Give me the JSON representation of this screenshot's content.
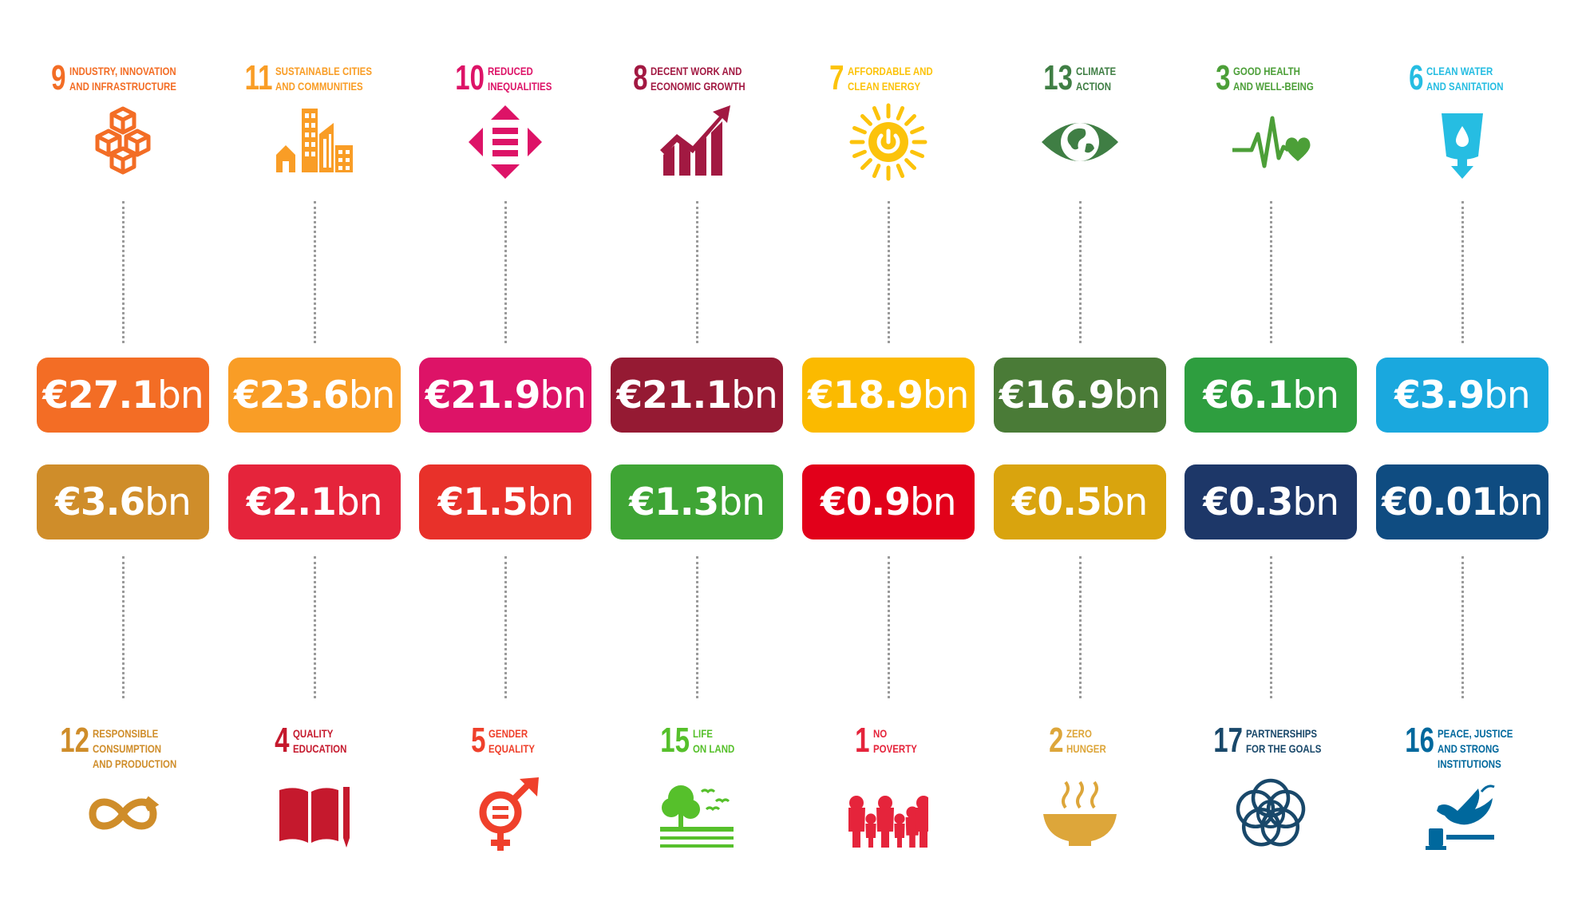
{
  "columns": [
    {
      "top_goal": {
        "number": "9",
        "title_line1": "INDUSTRY, INNOVATION",
        "title_line2": "AND INFRASTRUCTURE",
        "title_line3": "",
        "color": "#F36D25",
        "icon": "cubes-icon"
      },
      "top_amount": {
        "value": "€27.1",
        "unit": "bn",
        "color": "#F36D25"
      },
      "bottom_amount": {
        "value": "€3.6",
        "unit": "bn",
        "color": "#CF8D2A"
      },
      "bottom_goal": {
        "number": "12",
        "title_line1": "RESPONSIBLE",
        "title_line2": "CONSUMPTION",
        "title_line3": "AND PRODUCTION",
        "color": "#CF8D2A",
        "icon": "infinity-loop-icon"
      }
    },
    {
      "top_goal": {
        "number": "11",
        "title_line1": "SUSTAINABLE CITIES",
        "title_line2": "AND COMMUNITIES",
        "title_line3": "",
        "color": "#F99D26",
        "icon": "city-buildings-icon"
      },
      "top_amount": {
        "value": "€23.6",
        "unit": "bn",
        "color": "#F99D26"
      },
      "bottom_amount": {
        "value": "€2.1",
        "unit": "bn",
        "color": "#E5243B"
      },
      "bottom_goal": {
        "number": "4",
        "title_line1": "QUALITY",
        "title_line2": "EDUCATION",
        "title_line3": "",
        "color": "#C5192D",
        "icon": "book-pencil-icon"
      }
    },
    {
      "top_goal": {
        "number": "10",
        "title_line1": "REDUCED",
        "title_line2": "INEQUALITIES",
        "title_line3": "",
        "color": "#DD1367",
        "icon": "equality-arrows-icon"
      },
      "top_amount": {
        "value": "€21.9",
        "unit": "bn",
        "color": "#DD1367"
      },
      "bottom_amount": {
        "value": "€1.5",
        "unit": "bn",
        "color": "#E8312A"
      },
      "bottom_goal": {
        "number": "5",
        "title_line1": "GENDER",
        "title_line2": "EQUALITY",
        "title_line3": "",
        "color": "#EF402B",
        "icon": "gender-symbol-icon"
      }
    },
    {
      "top_goal": {
        "number": "8",
        "title_line1": "DECENT WORK AND",
        "title_line2": "ECONOMIC GROWTH",
        "title_line3": "",
        "color": "#A21942",
        "icon": "growth-chart-icon"
      },
      "top_amount": {
        "value": "€21.1",
        "unit": "bn",
        "color": "#951A33"
      },
      "bottom_amount": {
        "value": "€1.3",
        "unit": "bn",
        "color": "#3FA535"
      },
      "bottom_goal": {
        "number": "15",
        "title_line1": "LIFE",
        "title_line2": "ON LAND",
        "title_line3": "",
        "color": "#56C02B",
        "icon": "tree-birds-icon"
      }
    },
    {
      "top_goal": {
        "number": "7",
        "title_line1": "AFFORDABLE AND",
        "title_line2": "CLEAN ENERGY",
        "title_line3": "",
        "color": "#FCC30B",
        "icon": "sun-power-icon"
      },
      "top_amount": {
        "value": "€18.9",
        "unit": "bn",
        "color": "#FBBA00"
      },
      "bottom_amount": {
        "value": "€0.9",
        "unit": "bn",
        "color": "#E2001A"
      },
      "bottom_goal": {
        "number": "1",
        "title_line1": "NO",
        "title_line2": "POVERTY",
        "title_line3": "",
        "color": "#E5243B",
        "icon": "family-icon"
      }
    },
    {
      "top_goal": {
        "number": "13",
        "title_line1": "CLIMATE",
        "title_line2": "ACTION",
        "title_line3": "",
        "color": "#3F7E44",
        "icon": "globe-eye-icon"
      },
      "top_amount": {
        "value": "€16.9",
        "unit": "bn",
        "color": "#4A7B37"
      },
      "bottom_amount": {
        "value": "€0.5",
        "unit": "bn",
        "color": "#D9A40E"
      },
      "bottom_goal": {
        "number": "2",
        "title_line1": "ZERO",
        "title_line2": "HUNGER",
        "title_line3": "",
        "color": "#DDA63A",
        "icon": "food-bowl-icon"
      }
    },
    {
      "top_goal": {
        "number": "3",
        "title_line1": "GOOD HEALTH",
        "title_line2": "AND WELL-BEING",
        "title_line3": "",
        "color": "#4C9F38",
        "icon": "heartbeat-icon"
      },
      "top_amount": {
        "value": "€6.1",
        "unit": "bn",
        "color": "#2E9E3F"
      },
      "bottom_amount": {
        "value": "€0.3",
        "unit": "bn",
        "color": "#1D3768"
      },
      "bottom_goal": {
        "number": "17",
        "title_line1": "PARTNERSHIPS",
        "title_line2": "FOR THE GOALS",
        "title_line3": "",
        "color": "#19486A",
        "icon": "linked-rings-icon"
      }
    },
    {
      "top_goal": {
        "number": "6",
        "title_line1": "CLEAN WATER",
        "title_line2": "AND SANITATION",
        "title_line3": "",
        "color": "#26BDE2",
        "icon": "water-glass-icon"
      },
      "top_amount": {
        "value": "€3.9",
        "unit": "bn",
        "color": "#1AA8DE"
      },
      "bottom_amount": {
        "value": "€0.01",
        "unit": "bn",
        "color": "#0F4C81"
      },
      "bottom_goal": {
        "number": "16",
        "title_line1": "PEACE, JUSTICE",
        "title_line2": "AND STRONG",
        "title_line3": "INSTITUTIONS",
        "color": "#00689D",
        "icon": "dove-gavel-icon"
      }
    }
  ]
}
